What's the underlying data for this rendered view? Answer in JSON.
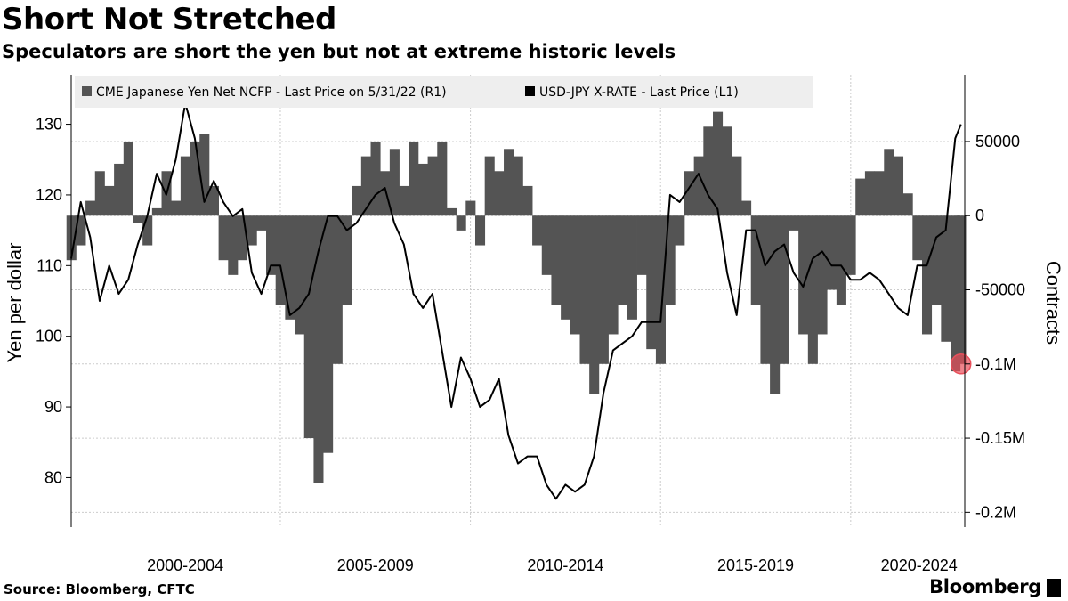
{
  "header": {
    "title": "Short Not Stretched",
    "subtitle": "Speculators are short the yen but not at extreme historic levels"
  },
  "footer": {
    "source": "Source: Bloomberg, CFTC",
    "brand": "Bloomberg"
  },
  "colors": {
    "bars": "#545454",
    "line": "#000000",
    "highlight": "#e8505b",
    "legend_bg": "#eeeeee",
    "grid": "#cccccc"
  },
  "chart_data": {
    "type": "bar",
    "legend_position": "top-left",
    "grid": true,
    "xlabel": "",
    "x_tick_labels": [
      "2000-2004",
      "2005-2009",
      "2010-2014",
      "2015-2019",
      "2020-2024"
    ],
    "x_range": [
      1999.0,
      2022.5
    ],
    "left_axis": {
      "label": "Yen per dollar",
      "range": [
        73,
        137
      ],
      "ticks": [
        80,
        90,
        100,
        110,
        120,
        130
      ]
    },
    "right_axis": {
      "label": "Contracts",
      "range": [
        -210000,
        95000
      ],
      "ticks": [
        {
          "value": 50000,
          "label": "50000"
        },
        {
          "value": 0,
          "label": "0"
        },
        {
          "value": -50000,
          "label": "-50000"
        },
        {
          "value": -100000,
          "label": "-0.1M"
        },
        {
          "value": -150000,
          "label": "-0.15M"
        },
        {
          "value": -200000,
          "label": "-0.2M"
        }
      ]
    },
    "series": [
      {
        "name": "CME Japanese Yen Net NCFP - Last Price on 5/31/22 (R1)",
        "axis": "right",
        "type": "bar",
        "x": [
          1999.0,
          1999.25,
          1999.5,
          1999.75,
          2000.0,
          2000.25,
          2000.5,
          2000.75,
          2001.0,
          2001.25,
          2001.5,
          2001.75,
          2002.0,
          2002.25,
          2002.5,
          2002.75,
          2003.0,
          2003.25,
          2003.5,
          2003.75,
          2004.0,
          2004.25,
          2004.5,
          2004.75,
          2005.0,
          2005.25,
          2005.5,
          2005.75,
          2006.0,
          2006.25,
          2006.5,
          2006.75,
          2007.0,
          2007.25,
          2007.5,
          2007.75,
          2008.0,
          2008.25,
          2008.5,
          2008.75,
          2009.0,
          2009.25,
          2009.5,
          2009.75,
          2010.0,
          2010.25,
          2010.5,
          2010.75,
          2011.0,
          2011.25,
          2011.5,
          2011.75,
          2012.0,
          2012.25,
          2012.5,
          2012.75,
          2013.0,
          2013.25,
          2013.5,
          2013.75,
          2014.0,
          2014.25,
          2014.5,
          2014.75,
          2015.0,
          2015.25,
          2015.5,
          2015.75,
          2016.0,
          2016.25,
          2016.5,
          2016.75,
          2017.0,
          2017.25,
          2017.5,
          2017.75,
          2018.0,
          2018.25,
          2018.5,
          2018.75,
          2019.0,
          2019.25,
          2019.5,
          2019.75,
          2020.0,
          2020.25,
          2020.5,
          2020.75,
          2021.0,
          2021.25,
          2021.5,
          2021.75,
          2022.0,
          2022.25,
          2022.4
        ],
        "values": [
          -30000,
          -20000,
          10000,
          30000,
          20000,
          35000,
          50000,
          -5000,
          -20000,
          5000,
          30000,
          10000,
          40000,
          50000,
          55000,
          20000,
          -30000,
          -40000,
          -30000,
          -20000,
          -10000,
          -40000,
          -60000,
          -70000,
          -80000,
          -150000,
          -180000,
          -160000,
          -100000,
          -60000,
          20000,
          40000,
          50000,
          30000,
          45000,
          20000,
          50000,
          35000,
          40000,
          50000,
          5000,
          -10000,
          10000,
          -20000,
          40000,
          30000,
          45000,
          40000,
          20000,
          -20000,
          -40000,
          -60000,
          -70000,
          -80000,
          -100000,
          -120000,
          -100000,
          -80000,
          -60000,
          -70000,
          -40000,
          -90000,
          -100000,
          -60000,
          -20000,
          30000,
          40000,
          60000,
          70000,
          60000,
          40000,
          10000,
          -60000,
          -100000,
          -120000,
          -100000,
          -10000,
          -80000,
          -100000,
          -80000,
          -50000,
          -60000,
          -40000,
          25000,
          30000,
          30000,
          45000,
          40000,
          15000,
          -30000,
          -80000,
          -60000,
          -85000,
          -105000,
          -100000
        ]
      },
      {
        "name": "USD-JPY X-RATE - Last Price (L1)",
        "axis": "left",
        "type": "line",
        "x": [
          1999.0,
          1999.25,
          1999.5,
          1999.75,
          2000.0,
          2000.25,
          2000.5,
          2000.75,
          2001.0,
          2001.25,
          2001.5,
          2001.75,
          2002.0,
          2002.25,
          2002.5,
          2002.75,
          2003.0,
          2003.25,
          2003.5,
          2003.75,
          2004.0,
          2004.25,
          2004.5,
          2004.75,
          2005.0,
          2005.25,
          2005.5,
          2005.75,
          2006.0,
          2006.25,
          2006.5,
          2006.75,
          2007.0,
          2007.25,
          2007.5,
          2007.75,
          2008.0,
          2008.25,
          2008.5,
          2008.75,
          2009.0,
          2009.25,
          2009.5,
          2009.75,
          2010.0,
          2010.25,
          2010.5,
          2010.75,
          2011.0,
          2011.25,
          2011.5,
          2011.75,
          2012.0,
          2012.25,
          2012.5,
          2012.75,
          2013.0,
          2013.25,
          2013.5,
          2013.75,
          2014.0,
          2014.25,
          2014.5,
          2014.75,
          2015.0,
          2015.25,
          2015.5,
          2015.75,
          2016.0,
          2016.25,
          2016.5,
          2016.75,
          2017.0,
          2017.25,
          2017.5,
          2017.75,
          2018.0,
          2018.25,
          2018.5,
          2018.75,
          2019.0,
          2019.25,
          2019.5,
          2019.75,
          2020.0,
          2020.25,
          2020.5,
          2020.75,
          2021.0,
          2021.25,
          2021.5,
          2021.75,
          2022.0,
          2022.25,
          2022.4
        ],
        "values": [
          111,
          119,
          114,
          105,
          110,
          106,
          108,
          113,
          117,
          123,
          120,
          125,
          133,
          128,
          119,
          122,
          119,
          117,
          118,
          109,
          106,
          110,
          110,
          103,
          104,
          106,
          112,
          117,
          117,
          115,
          116,
          118,
          120,
          121,
          116,
          113,
          106,
          104,
          106,
          98,
          90,
          97,
          94,
          90,
          91,
          94,
          86,
          82,
          83,
          83,
          79,
          77,
          79,
          78,
          79,
          83,
          92,
          98,
          99,
          100,
          102,
          102,
          102,
          120,
          119,
          121,
          123,
          120,
          118,
          109,
          103,
          115,
          115,
          110,
          112,
          113,
          109,
          107,
          111,
          112,
          110,
          110,
          108,
          108,
          109,
          108,
          106,
          104,
          103,
          110,
          110,
          114,
          115,
          128,
          130
        ]
      }
    ]
  }
}
